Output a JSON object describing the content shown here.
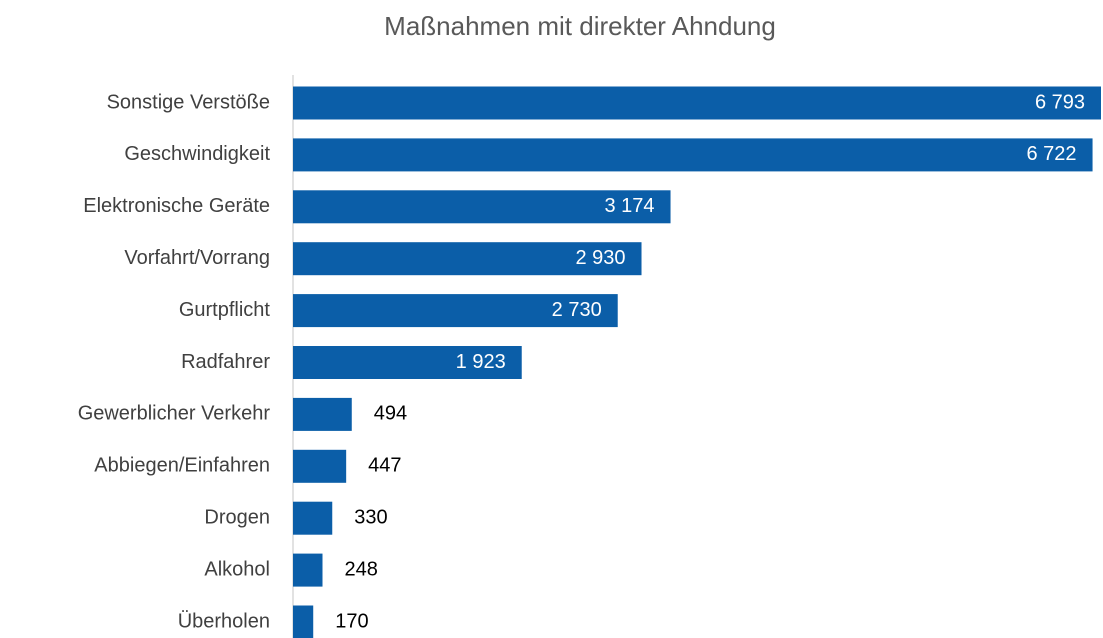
{
  "chart_data": {
    "type": "barh",
    "title": "Maßnahmen mit direkter Ahndung",
    "categories": [
      "Sonstige Verstöße",
      "Geschwindigkeit",
      "Elektronische Geräte",
      "Vorfahrt/Vorrang",
      "Gurtpflicht",
      "Radfahrer",
      "Gewerblicher Verkehr",
      "Abbiegen/Einfahren",
      "Drogen",
      "Alkohol",
      "Überholen"
    ],
    "values": [
      6793,
      6722,
      3174,
      2930,
      2730,
      1923,
      494,
      447,
      330,
      248,
      170
    ],
    "value_labels": [
      "6 793",
      "6 722",
      "3 174",
      "2 930",
      "2 730",
      "1 923",
      "494",
      "447",
      "330",
      "248",
      "170"
    ],
    "color": "#0b5ea8"
  }
}
